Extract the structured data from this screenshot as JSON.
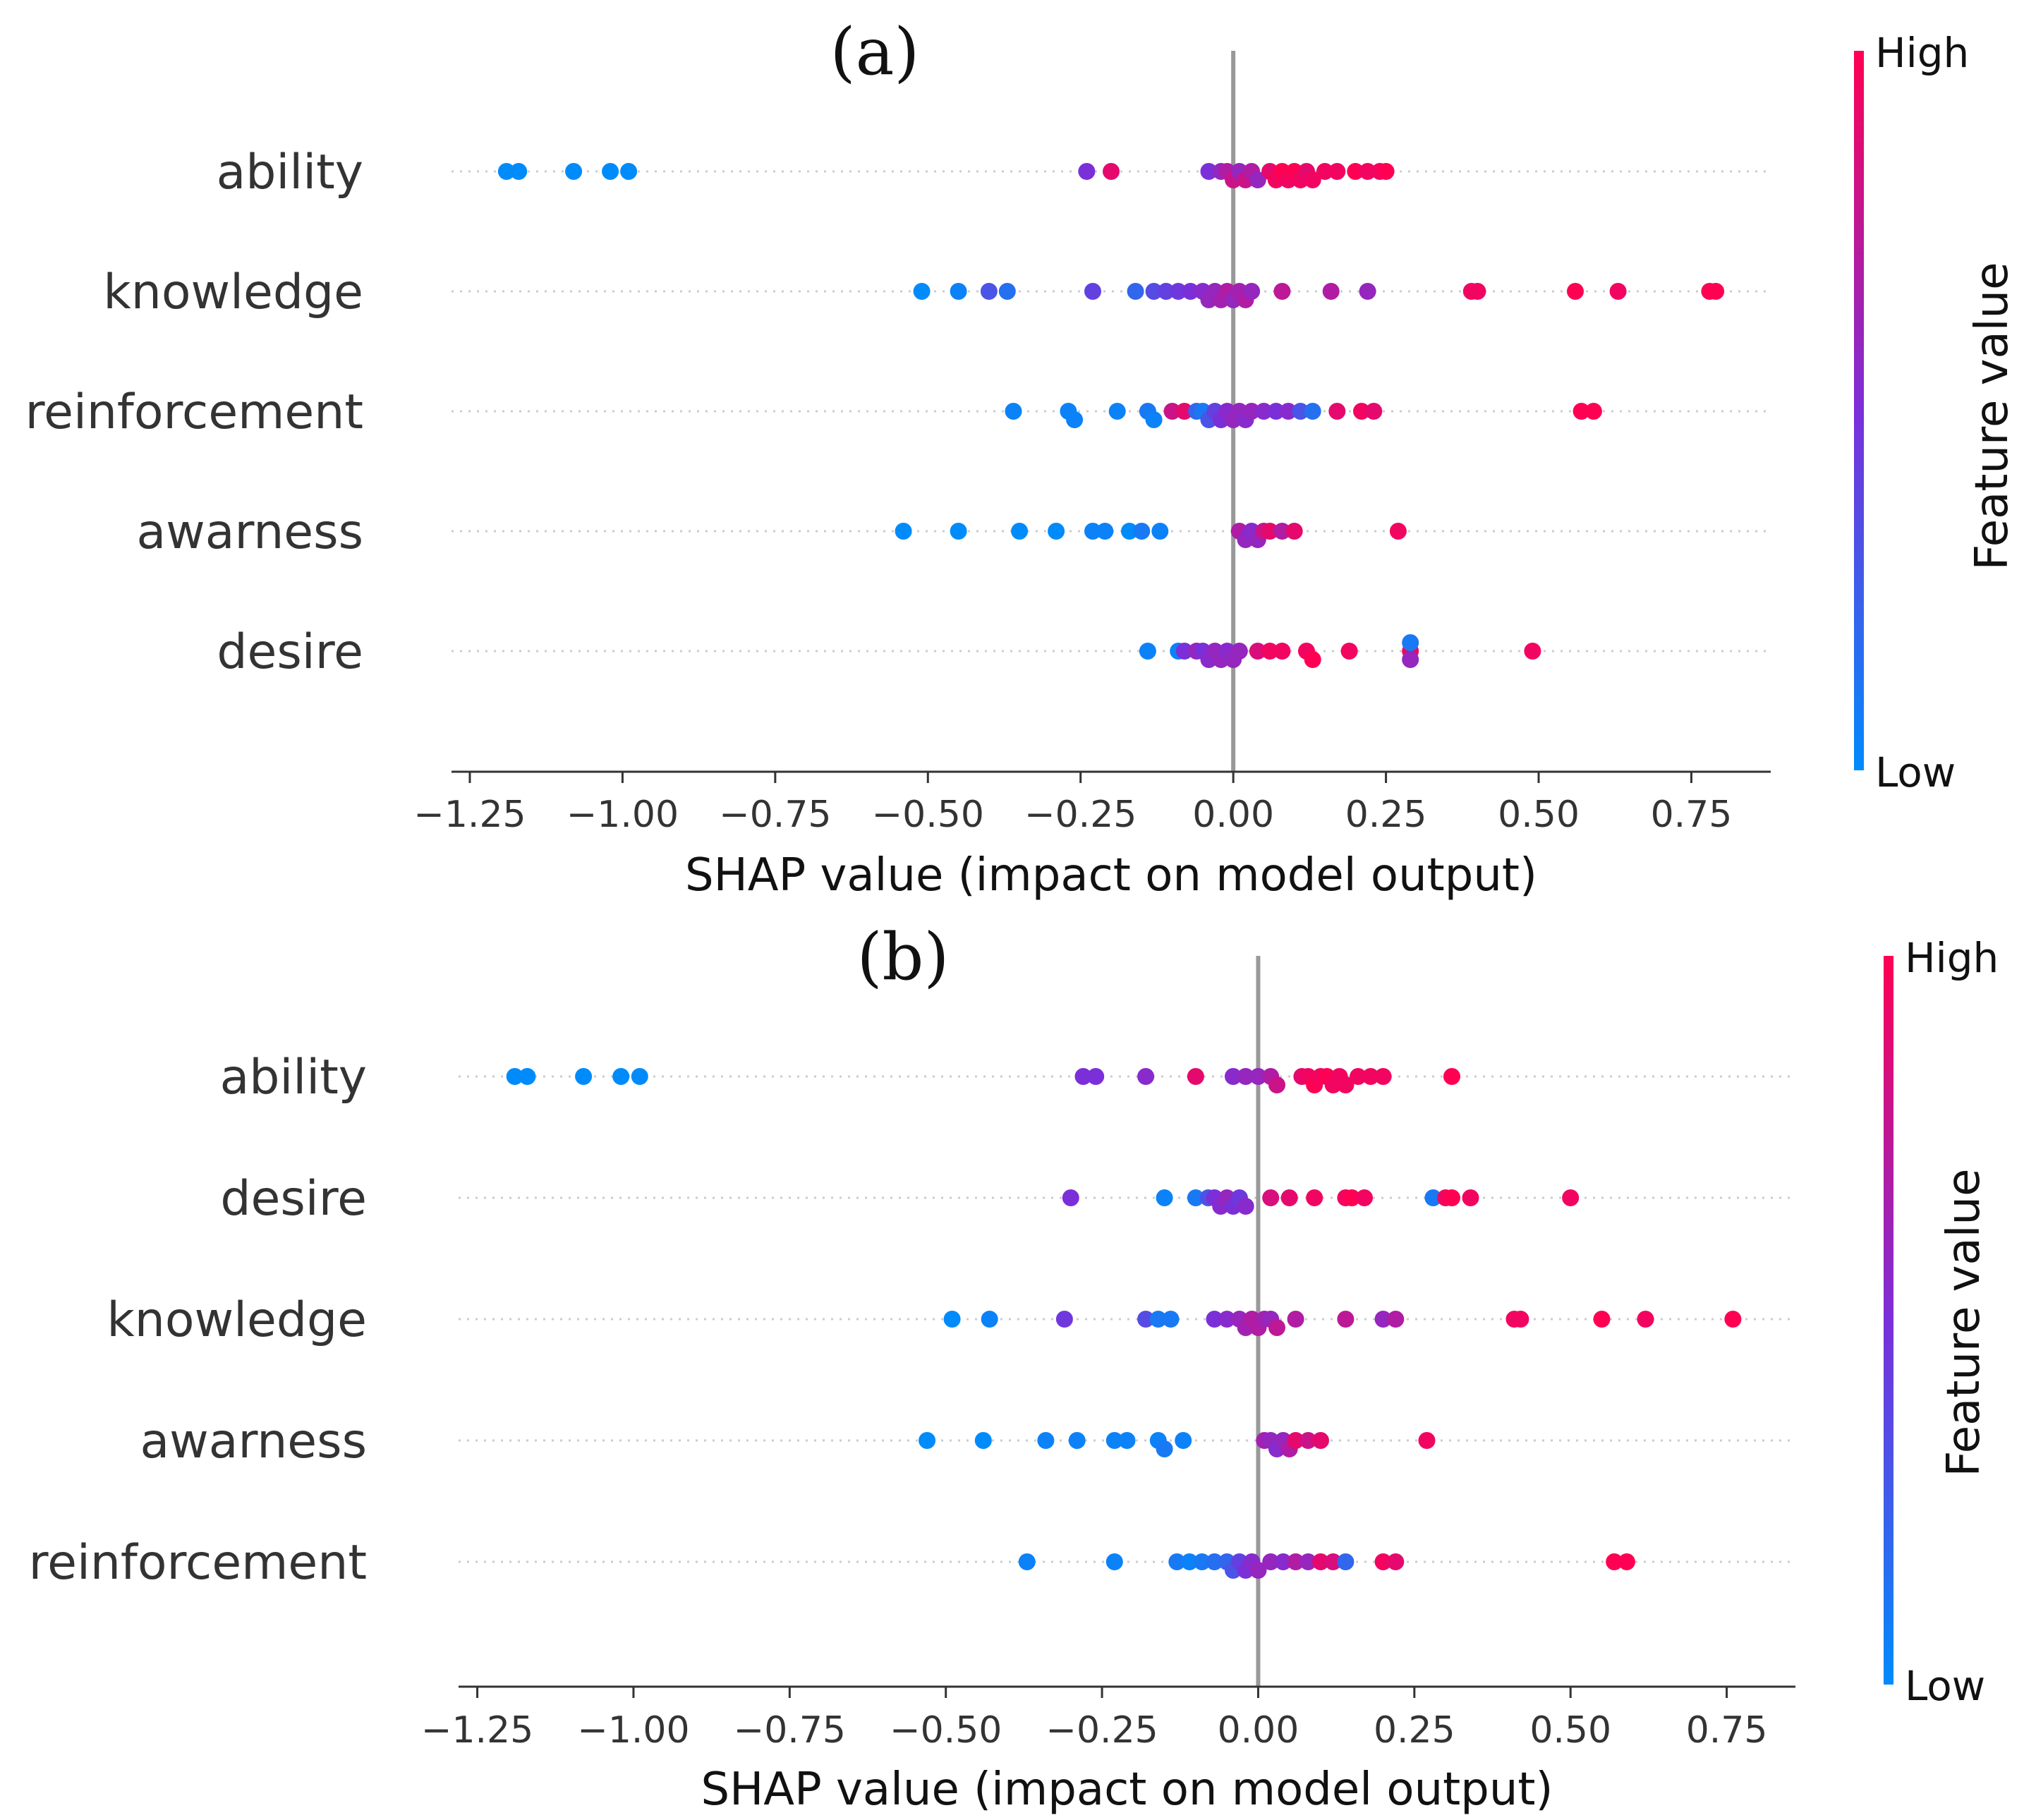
{
  "colors": {
    "low": "#008bfb",
    "mid": "#7b2fd9",
    "high": "#ff0052",
    "zero_line": "#999999",
    "grid": "#cccccc",
    "axis": "#333333"
  },
  "chart_data": [
    {
      "type": "scatter",
      "panel": "(a)",
      "xlabel": "SHAP value (impact on model output)",
      "xlim": [
        -1.28,
        0.88
      ],
      "xticks": [
        -1.25,
        -1.0,
        -0.75,
        -0.5,
        -0.25,
        0.0,
        0.25,
        0.5,
        0.75
      ],
      "xtick_labels": [
        "−1.25",
        "−1.00",
        "−0.75",
        "−0.50",
        "−0.25",
        "0.00",
        "0.25",
        "0.50",
        "0.75"
      ],
      "colorbar": {
        "title": "Feature value",
        "high_label": "High",
        "low_label": "Low"
      },
      "features": [
        {
          "name": "ability",
          "points": [
            [
              -1.19,
              0.0
            ],
            [
              -1.17,
              0.0
            ],
            [
              -1.08,
              0.0
            ],
            [
              -1.02,
              0.0
            ],
            [
              -0.99,
              0.0
            ],
            [
              -0.24,
              0.5
            ],
            [
              -0.2,
              0.9
            ],
            [
              -0.04,
              0.5
            ],
            [
              -0.02,
              0.6
            ],
            [
              -0.01,
              0.7
            ],
            [
              0.0,
              0.8
            ],
            [
              0.01,
              0.6
            ],
            [
              0.02,
              0.8
            ],
            [
              0.03,
              0.7
            ],
            [
              0.04,
              0.6
            ],
            [
              0.06,
              0.9
            ],
            [
              0.07,
              0.95
            ],
            [
              0.08,
              1.0
            ],
            [
              0.09,
              0.95
            ],
            [
              0.1,
              1.0
            ],
            [
              0.11,
              0.95
            ],
            [
              0.12,
              0.9
            ],
            [
              0.13,
              0.95
            ],
            [
              0.15,
              0.95
            ],
            [
              0.17,
              0.95
            ],
            [
              0.2,
              1.0
            ],
            [
              0.22,
              0.95
            ],
            [
              0.24,
              0.95
            ],
            [
              0.25,
              1.0
            ]
          ]
        },
        {
          "name": "knowledge",
          "points": [
            [
              -0.51,
              0.0
            ],
            [
              -0.45,
              0.05
            ],
            [
              -0.4,
              0.3
            ],
            [
              -0.37,
              0.15
            ],
            [
              -0.23,
              0.4
            ],
            [
              -0.16,
              0.2
            ],
            [
              -0.13,
              0.35
            ],
            [
              -0.11,
              0.4
            ],
            [
              -0.09,
              0.45
            ],
            [
              -0.07,
              0.5
            ],
            [
              -0.05,
              0.55
            ],
            [
              -0.04,
              0.6
            ],
            [
              -0.03,
              0.6
            ],
            [
              -0.02,
              0.65
            ],
            [
              -0.01,
              0.7
            ],
            [
              0.0,
              0.6
            ],
            [
              0.01,
              0.65
            ],
            [
              0.02,
              0.7
            ],
            [
              0.03,
              0.6
            ],
            [
              0.08,
              0.75
            ],
            [
              0.16,
              0.7
            ],
            [
              0.22,
              0.6
            ],
            [
              0.39,
              0.95
            ],
            [
              0.4,
              0.95
            ],
            [
              0.56,
              1.0
            ],
            [
              0.63,
              0.95
            ],
            [
              0.78,
              1.0
            ],
            [
              0.79,
              1.0
            ]
          ]
        },
        {
          "name": "reinforcement",
          "points": [
            [
              -0.36,
              0.05
            ],
            [
              -0.27,
              0.05
            ],
            [
              -0.26,
              0.05
            ],
            [
              -0.19,
              0.05
            ],
            [
              -0.14,
              0.1
            ],
            [
              -0.13,
              0.05
            ],
            [
              -0.1,
              0.8
            ],
            [
              -0.08,
              0.9
            ],
            [
              -0.06,
              0.2
            ],
            [
              -0.05,
              0.1
            ],
            [
              -0.04,
              0.3
            ],
            [
              -0.03,
              0.4
            ],
            [
              -0.02,
              0.5
            ],
            [
              -0.01,
              0.55
            ],
            [
              0.0,
              0.6
            ],
            [
              0.01,
              0.6
            ],
            [
              0.02,
              0.55
            ],
            [
              0.03,
              0.6
            ],
            [
              0.05,
              0.55
            ],
            [
              0.07,
              0.5
            ],
            [
              0.09,
              0.55
            ],
            [
              0.11,
              0.3
            ],
            [
              0.13,
              0.15
            ],
            [
              0.17,
              0.9
            ],
            [
              0.21,
              0.95
            ],
            [
              0.23,
              0.9
            ],
            [
              0.57,
              1.0
            ],
            [
              0.59,
              1.0
            ]
          ]
        },
        {
          "name": "awarness",
          "points": [
            [
              -0.54,
              0.0
            ],
            [
              -0.45,
              0.0
            ],
            [
              -0.35,
              0.0
            ],
            [
              -0.29,
              0.0
            ],
            [
              -0.23,
              0.05
            ],
            [
              -0.21,
              0.05
            ],
            [
              -0.17,
              0.0
            ],
            [
              -0.15,
              0.1
            ],
            [
              -0.12,
              0.05
            ],
            [
              0.01,
              0.7
            ],
            [
              0.02,
              0.6
            ],
            [
              0.03,
              0.55
            ],
            [
              0.04,
              0.6
            ],
            [
              0.05,
              0.8
            ],
            [
              0.06,
              0.9
            ],
            [
              0.08,
              0.7
            ],
            [
              0.1,
              0.9
            ],
            [
              0.27,
              0.95
            ]
          ]
        },
        {
          "name": "desire",
          "points": [
            [
              -0.14,
              0.05
            ],
            [
              -0.09,
              0.05
            ],
            [
              -0.08,
              0.5
            ],
            [
              -0.06,
              0.6
            ],
            [
              -0.05,
              0.5
            ],
            [
              -0.04,
              0.55
            ],
            [
              -0.03,
              0.6
            ],
            [
              -0.02,
              0.6
            ],
            [
              -0.01,
              0.55
            ],
            [
              0.0,
              0.6
            ],
            [
              0.01,
              0.6
            ],
            [
              0.04,
              0.85
            ],
            [
              0.06,
              0.95
            ],
            [
              0.08,
              0.95
            ],
            [
              0.12,
              0.95
            ],
            [
              0.13,
              1.0
            ],
            [
              0.19,
              0.95
            ],
            [
              0.29,
              0.95
            ],
            [
              0.29,
              0.6
            ],
            [
              0.29,
              0.1
            ],
            [
              0.49,
              0.95
            ]
          ]
        }
      ]
    },
    {
      "type": "scatter",
      "panel": "(b)",
      "xlabel": "SHAP value (impact on model output)",
      "xlim": [
        -1.28,
        0.86
      ],
      "xticks": [
        -1.25,
        -1.0,
        -0.75,
        -0.5,
        -0.25,
        0.0,
        0.25,
        0.5,
        0.75
      ],
      "xtick_labels": [
        "−1.25",
        "−1.00",
        "−0.75",
        "−0.50",
        "−0.25",
        "0.00",
        "0.25",
        "0.50",
        "0.75"
      ],
      "colorbar": {
        "title": "Feature value",
        "high_label": "High",
        "low_label": "Low"
      },
      "features": [
        {
          "name": "ability",
          "points": [
            [
              -1.19,
              0.0
            ],
            [
              -1.17,
              0.0
            ],
            [
              -1.08,
              0.0
            ],
            [
              -1.02,
              0.0
            ],
            [
              -0.99,
              0.0
            ],
            [
              -0.28,
              0.5
            ],
            [
              -0.26,
              0.5
            ],
            [
              -0.18,
              0.55
            ],
            [
              -0.1,
              0.9
            ],
            [
              -0.04,
              0.55
            ],
            [
              -0.02,
              0.6
            ],
            [
              0.0,
              0.6
            ],
            [
              0.02,
              0.7
            ],
            [
              0.03,
              0.8
            ],
            [
              0.07,
              0.9
            ],
            [
              0.08,
              0.95
            ],
            [
              0.09,
              1.0
            ],
            [
              0.1,
              0.95
            ],
            [
              0.11,
              1.0
            ],
            [
              0.12,
              0.95
            ],
            [
              0.13,
              0.95
            ],
            [
              0.14,
              0.95
            ],
            [
              0.16,
              0.95
            ],
            [
              0.18,
              0.95
            ],
            [
              0.2,
              0.95
            ],
            [
              0.31,
              1.0
            ]
          ]
        },
        {
          "name": "desire",
          "points": [
            [
              -0.3,
              0.5
            ],
            [
              -0.15,
              0.05
            ],
            [
              -0.1,
              0.1
            ],
            [
              -0.08,
              0.3
            ],
            [
              -0.07,
              0.5
            ],
            [
              -0.06,
              0.55
            ],
            [
              -0.05,
              0.6
            ],
            [
              -0.04,
              0.5
            ],
            [
              -0.03,
              0.45
            ],
            [
              -0.02,
              0.55
            ],
            [
              0.02,
              0.85
            ],
            [
              0.05,
              0.9
            ],
            [
              0.09,
              0.95
            ],
            [
              0.14,
              0.95
            ],
            [
              0.15,
              1.0
            ],
            [
              0.17,
              0.95
            ],
            [
              0.28,
              0.1
            ],
            [
              0.3,
              0.95
            ],
            [
              0.31,
              1.0
            ],
            [
              0.34,
              0.95
            ],
            [
              0.5,
              0.95
            ]
          ]
        },
        {
          "name": "knowledge",
          "points": [
            [
              -0.49,
              0.0
            ],
            [
              -0.43,
              0.05
            ],
            [
              -0.31,
              0.45
            ],
            [
              -0.18,
              0.35
            ],
            [
              -0.16,
              0.1
            ],
            [
              -0.14,
              0.1
            ],
            [
              -0.07,
              0.5
            ],
            [
              -0.05,
              0.55
            ],
            [
              -0.03,
              0.6
            ],
            [
              -0.02,
              0.65
            ],
            [
              -0.01,
              0.7
            ],
            [
              0.0,
              0.7
            ],
            [
              0.01,
              0.65
            ],
            [
              0.02,
              0.6
            ],
            [
              0.03,
              0.75
            ],
            [
              0.06,
              0.7
            ],
            [
              0.14,
              0.75
            ],
            [
              0.2,
              0.6
            ],
            [
              0.22,
              0.7
            ],
            [
              0.41,
              0.95
            ],
            [
              0.42,
              0.95
            ],
            [
              0.55,
              1.0
            ],
            [
              0.62,
              0.95
            ],
            [
              0.76,
              1.0
            ]
          ]
        },
        {
          "name": "awarness",
          "points": [
            [
              -0.53,
              0.0
            ],
            [
              -0.44,
              0.0
            ],
            [
              -0.34,
              0.05
            ],
            [
              -0.29,
              0.05
            ],
            [
              -0.23,
              0.05
            ],
            [
              -0.21,
              0.05
            ],
            [
              -0.16,
              0.05
            ],
            [
              -0.15,
              0.1
            ],
            [
              -0.12,
              0.05
            ],
            [
              0.01,
              0.65
            ],
            [
              0.02,
              0.6
            ],
            [
              0.03,
              0.55
            ],
            [
              0.04,
              0.6
            ],
            [
              0.05,
              0.7
            ],
            [
              0.06,
              0.9
            ],
            [
              0.08,
              0.8
            ],
            [
              0.1,
              0.9
            ],
            [
              0.27,
              0.95
            ]
          ]
        },
        {
          "name": "reinforcement",
          "points": [
            [
              -0.37,
              0.05
            ],
            [
              -0.23,
              0.05
            ],
            [
              -0.13,
              0.1
            ],
            [
              -0.11,
              0.05
            ],
            [
              -0.09,
              0.1
            ],
            [
              -0.07,
              0.15
            ],
            [
              -0.05,
              0.2
            ],
            [
              -0.04,
              0.3
            ],
            [
              -0.03,
              0.4
            ],
            [
              -0.02,
              0.5
            ],
            [
              -0.01,
              0.55
            ],
            [
              0.0,
              0.6
            ],
            [
              0.02,
              0.6
            ],
            [
              0.04,
              0.55
            ],
            [
              0.06,
              0.7
            ],
            [
              0.08,
              0.6
            ],
            [
              0.1,
              0.9
            ],
            [
              0.12,
              0.85
            ],
            [
              0.14,
              0.2
            ],
            [
              0.2,
              0.95
            ],
            [
              0.22,
              0.9
            ],
            [
              0.57,
              1.0
            ],
            [
              0.59,
              1.0
            ]
          ]
        }
      ]
    }
  ]
}
